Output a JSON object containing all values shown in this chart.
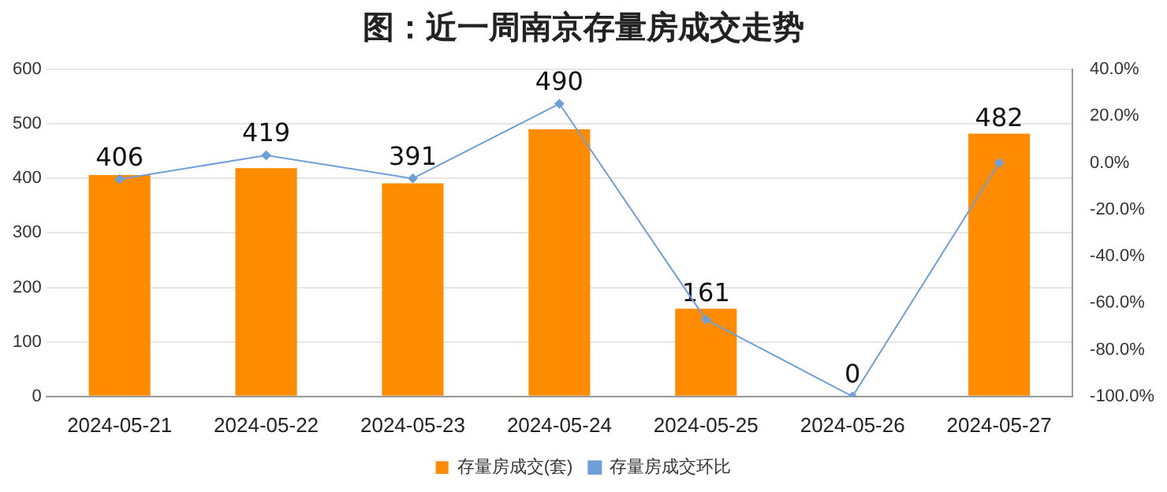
{
  "chart_data": {
    "type": "bar",
    "title": "图：近一周南京存量房成交走势",
    "categories": [
      "2024-05-21",
      "2024-05-22",
      "2024-05-23",
      "2024-05-24",
      "2024-05-25",
      "2024-05-26",
      "2024-05-27"
    ],
    "series": [
      {
        "name": "存量房成交(套)",
        "color": "#ff8c00",
        "values": [
          406,
          419,
          391,
          490,
          161,
          0,
          482
        ],
        "value_labels": [
          "406",
          "419",
          "391",
          "490",
          "161",
          "0",
          "482"
        ]
      },
      {
        "name": "存量房成交环比",
        "type": "line",
        "axis": "y2",
        "color": "#6f9fd8",
        "marker": "diamond",
        "values": [
          -7,
          3.2,
          -6.7,
          25.3,
          -67.1,
          -100,
          0
        ]
      }
    ],
    "ylim": [
      0,
      600
    ],
    "yticks": [
      0,
      100,
      200,
      300,
      400,
      500,
      600
    ],
    "y2lim": [
      -100,
      40
    ],
    "y2ticks": [
      {
        "value": -100,
        "label": "-100.0%"
      },
      {
        "value": -80,
        "label": "-80.0%"
      },
      {
        "value": -60,
        "label": "-60.0%"
      },
      {
        "value": -40,
        "label": "-40.0%"
      },
      {
        "value": -20,
        "label": "-20.0%"
      },
      {
        "value": 0,
        "label": "0.0%"
      },
      {
        "value": 20,
        "label": "20.0%"
      },
      {
        "value": 40,
        "label": "40.0%"
      }
    ],
    "grid": "y",
    "legend": "bottom"
  }
}
